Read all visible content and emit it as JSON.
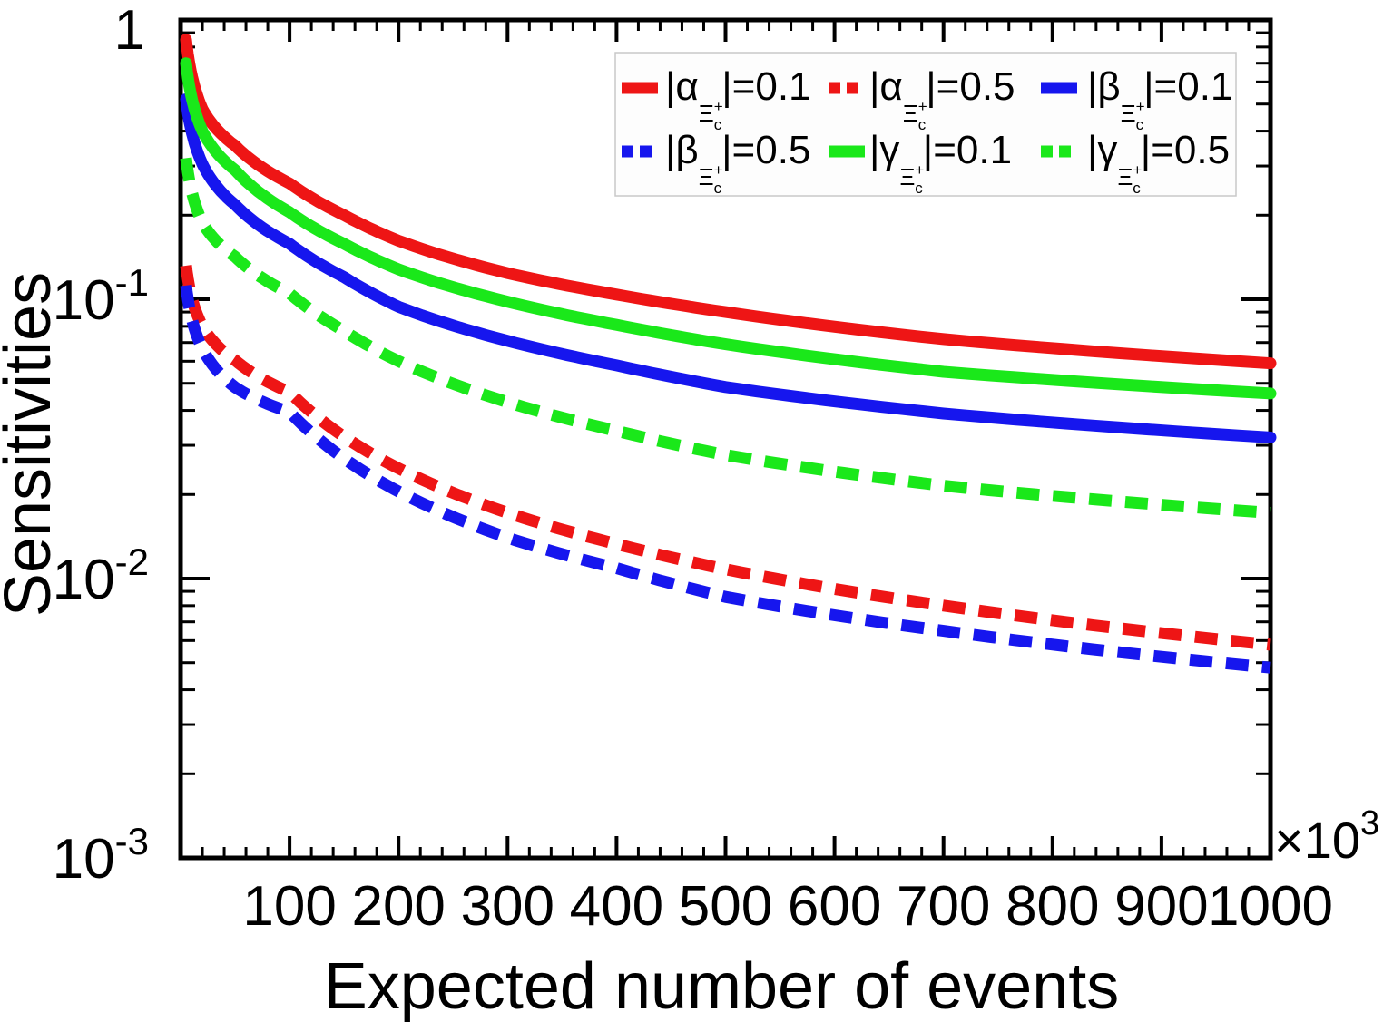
{
  "axes": {
    "x_tick_values": [
      100,
      200,
      300,
      400,
      500,
      600,
      700,
      800,
      900,
      1000
    ],
    "x_tick_labels": [
      "100",
      "200",
      "300",
      "400",
      "500",
      "600",
      "700",
      "800",
      "900",
      "1000"
    ],
    "x_minor_step": 20,
    "x_multiplier": {
      "base": "×10",
      "exp": "3"
    },
    "y_tick_exponents": [
      0,
      -1,
      -2,
      -3
    ],
    "y_tick_labels": [
      {
        "base": "1",
        "exp": ""
      },
      {
        "base": "10",
        "exp": "-1"
      },
      {
        "base": "10",
        "exp": "-2"
      },
      {
        "base": "10",
        "exp": "-3"
      }
    ]
  },
  "legend": {
    "entries": [
      {
        "label": "|α_Ξc+|=0.1",
        "p1": "|α",
        "sub": "Ξ",
        "subc": "c",
        "sup": "+",
        "p2": "|=0.1",
        "color": "#ee1515",
        "style": "solid"
      },
      {
        "label": "|α_Ξc+|=0.5",
        "p1": "|α",
        "sub": "Ξ",
        "subc": "c",
        "sup": "+",
        "p2": "|=0.5",
        "color": "#ee1515",
        "style": "dashed"
      },
      {
        "label": "|β_Ξc+|=0.1",
        "p1": "|β",
        "sub": "Ξ",
        "subc": "c",
        "sup": "+",
        "p2": "|=0.1",
        "color": "#1616ee",
        "style": "solid"
      },
      {
        "label": "|β_Ξc+|=0.5",
        "p1": "|β",
        "sub": "Ξ",
        "subc": "c",
        "sup": "+",
        "p2": "|=0.5",
        "color": "#1616ee",
        "style": "dashed"
      },
      {
        "label": "|γ_Ξc+|=0.1",
        "p1": "|γ",
        "sub": "Ξ",
        "subc": "c",
        "sup": "+",
        "p2": "|=0.1",
        "color": "#1ae81a",
        "style": "solid"
      },
      {
        "label": "|γ_Ξc+|=0.5",
        "p1": "|γ",
        "sub": "Ξ",
        "subc": "c",
        "sup": "+",
        "p2": "|=0.5",
        "color": "#1ae81a",
        "style": "dashed"
      }
    ]
  },
  "chart_data": {
    "type": "line",
    "title": "",
    "xlabel": "Expected number of events",
    "ylabel": "Sensitivities",
    "x_scale": "linear",
    "y_scale": "log",
    "xlim": [
      0,
      1000
    ],
    "ylim": [
      0.001,
      1
    ],
    "x_axis_unit_multiplier": "×10^3",
    "grid": false,
    "legend_position": "top-right-inside",
    "x": [
      5,
      10,
      20,
      50,
      100,
      150,
      200,
      300,
      400,
      500,
      700,
      1000
    ],
    "series": [
      {
        "key": "alpha01",
        "name": "|α_Ξc+|=0.1",
        "color": "#ee1515",
        "style": "solid",
        "values": [
          0.85,
          0.64,
          0.48,
          0.355,
          0.26,
          0.2,
          0.162,
          0.124,
          0.104,
          0.09,
          0.072,
          0.059
        ]
      },
      {
        "key": "alpha05",
        "name": "|α_Ξc+|=0.5",
        "color": "#ee1515",
        "style": "dashed",
        "values": [
          0.132,
          0.102,
          0.08,
          0.0605,
          0.0465,
          0.0322,
          0.0248,
          0.0172,
          0.0133,
          0.0108,
          0.008,
          0.0058
        ]
      },
      {
        "key": "beta01",
        "name": "|β_Ξc+|=0.1",
        "color": "#1616ee",
        "style": "solid",
        "values": [
          0.52,
          0.4,
          0.305,
          0.218,
          0.158,
          0.12,
          0.094,
          0.071,
          0.058,
          0.0485,
          0.039,
          0.032
        ]
      },
      {
        "key": "beta05",
        "name": "|β_Ξc+|=0.5",
        "color": "#1616ee",
        "style": "dashed",
        "values": [
          0.112,
          0.086,
          0.0665,
          0.0484,
          0.0395,
          0.0269,
          0.0205,
          0.014,
          0.0109,
          0.0086,
          0.0065,
          0.0048
        ]
      },
      {
        "key": "gamma01",
        "name": "|γ_Ξc+|=0.1",
        "color": "#1ae81a",
        "style": "solid",
        "values": [
          0.7,
          0.53,
          0.4,
          0.29,
          0.205,
          0.158,
          0.128,
          0.098,
          0.081,
          0.069,
          0.055,
          0.046
        ]
      },
      {
        "key": "gamma05",
        "name": "|γ_Ξc+|=0.5",
        "color": "#1ae81a",
        "style": "dashed",
        "values": [
          0.32,
          0.245,
          0.188,
          0.142,
          0.105,
          0.077,
          0.06,
          0.0428,
          0.0338,
          0.0277,
          0.0215,
          0.0172
        ]
      }
    ]
  }
}
